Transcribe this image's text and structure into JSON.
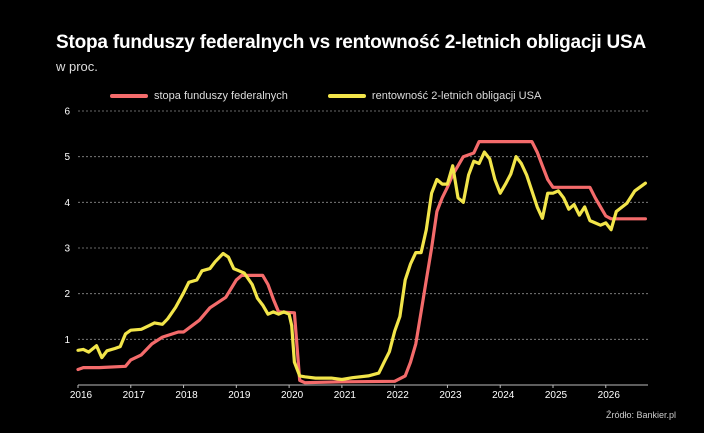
{
  "title": "Stopa funduszy federalnych vs rentowność 2-letnich obligacji USA",
  "subtitle": "w proc.",
  "source": "Źródło: Bankier.pl",
  "colors": {
    "background": "#000000",
    "fed": "#f46b6b",
    "yield": "#f2e54a",
    "grid": "#888888"
  },
  "chart_data": {
    "type": "line",
    "xlim": [
      2016,
      2026.8
    ],
    "ylim": [
      0,
      6
    ],
    "x_ticks": [
      "2016",
      "2017",
      "2018",
      "2019",
      "2020",
      "2021",
      "2022",
      "2023",
      "2024",
      "2025",
      "2026"
    ],
    "y_ticks": [
      "1",
      "2",
      "3",
      "4",
      "5",
      "6"
    ],
    "grid": "horizontal dashed",
    "legend_position": "top",
    "series": [
      {
        "name": "stopa funduszy federalnych",
        "color": "#f46b6b",
        "points": [
          [
            2016.0,
            0.34
          ],
          [
            2016.1,
            0.38
          ],
          [
            2016.4,
            0.38
          ],
          [
            2016.9,
            0.41
          ],
          [
            2017.0,
            0.55
          ],
          [
            2017.2,
            0.66
          ],
          [
            2017.4,
            0.9
          ],
          [
            2017.6,
            1.05
          ],
          [
            2017.9,
            1.16
          ],
          [
            2018.0,
            1.16
          ],
          [
            2018.3,
            1.42
          ],
          [
            2018.5,
            1.69
          ],
          [
            2018.8,
            1.92
          ],
          [
            2019.0,
            2.3
          ],
          [
            2019.1,
            2.4
          ],
          [
            2019.5,
            2.4
          ],
          [
            2019.6,
            2.2
          ],
          [
            2019.7,
            1.88
          ],
          [
            2019.8,
            1.6
          ],
          [
            2020.1,
            1.58
          ],
          [
            2020.2,
            0.1
          ],
          [
            2020.3,
            0.05
          ],
          [
            2021.0,
            0.07
          ],
          [
            2022.0,
            0.08
          ],
          [
            2022.2,
            0.2
          ],
          [
            2022.3,
            0.5
          ],
          [
            2022.4,
            0.9
          ],
          [
            2022.5,
            1.6
          ],
          [
            2022.6,
            2.3
          ],
          [
            2022.7,
            3.0
          ],
          [
            2022.8,
            3.8
          ],
          [
            2022.9,
            4.1
          ],
          [
            2023.0,
            4.33
          ],
          [
            2023.1,
            4.6
          ],
          [
            2023.3,
            5.0
          ],
          [
            2023.5,
            5.08
          ],
          [
            2023.6,
            5.33
          ],
          [
            2024.6,
            5.33
          ],
          [
            2024.7,
            5.1
          ],
          [
            2024.8,
            4.8
          ],
          [
            2024.9,
            4.5
          ],
          [
            2025.0,
            4.33
          ],
          [
            2025.7,
            4.33
          ],
          [
            2025.8,
            4.1
          ],
          [
            2025.9,
            3.9
          ],
          [
            2026.0,
            3.7
          ],
          [
            2026.1,
            3.64
          ],
          [
            2026.75,
            3.64
          ]
        ]
      },
      {
        "name": "rentowność 2-letnich obligacji USA",
        "color": "#f2e54a",
        "points": [
          [
            2016.0,
            0.76
          ],
          [
            2016.1,
            0.78
          ],
          [
            2016.2,
            0.72
          ],
          [
            2016.35,
            0.86
          ],
          [
            2016.45,
            0.6
          ],
          [
            2016.55,
            0.75
          ],
          [
            2016.7,
            0.8
          ],
          [
            2016.8,
            0.84
          ],
          [
            2016.9,
            1.12
          ],
          [
            2017.0,
            1.2
          ],
          [
            2017.2,
            1.22
          ],
          [
            2017.35,
            1.3
          ],
          [
            2017.45,
            1.36
          ],
          [
            2017.6,
            1.33
          ],
          [
            2017.7,
            1.45
          ],
          [
            2017.85,
            1.7
          ],
          [
            2018.0,
            2.02
          ],
          [
            2018.1,
            2.25
          ],
          [
            2018.25,
            2.3
          ],
          [
            2018.35,
            2.5
          ],
          [
            2018.5,
            2.55
          ],
          [
            2018.6,
            2.7
          ],
          [
            2018.75,
            2.88
          ],
          [
            2018.85,
            2.8
          ],
          [
            2018.95,
            2.55
          ],
          [
            2019.05,
            2.5
          ],
          [
            2019.15,
            2.45
          ],
          [
            2019.3,
            2.2
          ],
          [
            2019.4,
            1.9
          ],
          [
            2019.5,
            1.75
          ],
          [
            2019.6,
            1.55
          ],
          [
            2019.7,
            1.6
          ],
          [
            2019.8,
            1.55
          ],
          [
            2019.9,
            1.6
          ],
          [
            2020.0,
            1.55
          ],
          [
            2020.05,
            1.3
          ],
          [
            2020.1,
            0.5
          ],
          [
            2020.2,
            0.2
          ],
          [
            2020.3,
            0.18
          ],
          [
            2020.5,
            0.15
          ],
          [
            2020.8,
            0.15
          ],
          [
            2021.0,
            0.12
          ],
          [
            2021.2,
            0.16
          ],
          [
            2021.5,
            0.2
          ],
          [
            2021.7,
            0.26
          ],
          [
            2021.8,
            0.5
          ],
          [
            2021.9,
            0.73
          ],
          [
            2022.0,
            1.18
          ],
          [
            2022.1,
            1.5
          ],
          [
            2022.2,
            2.3
          ],
          [
            2022.3,
            2.65
          ],
          [
            2022.4,
            2.9
          ],
          [
            2022.5,
            2.9
          ],
          [
            2022.6,
            3.4
          ],
          [
            2022.7,
            4.2
          ],
          [
            2022.8,
            4.5
          ],
          [
            2022.9,
            4.4
          ],
          [
            2023.0,
            4.4
          ],
          [
            2023.1,
            4.8
          ],
          [
            2023.2,
            4.1
          ],
          [
            2023.3,
            4.0
          ],
          [
            2023.4,
            4.6
          ],
          [
            2023.5,
            4.9
          ],
          [
            2023.6,
            4.85
          ],
          [
            2023.7,
            5.1
          ],
          [
            2023.8,
            4.95
          ],
          [
            2023.9,
            4.5
          ],
          [
            2024.0,
            4.2
          ],
          [
            2024.1,
            4.4
          ],
          [
            2024.2,
            4.62
          ],
          [
            2024.3,
            5.0
          ],
          [
            2024.4,
            4.85
          ],
          [
            2024.5,
            4.6
          ],
          [
            2024.6,
            4.25
          ],
          [
            2024.7,
            3.9
          ],
          [
            2024.8,
            3.65
          ],
          [
            2024.9,
            4.2
          ],
          [
            2025.0,
            4.2
          ],
          [
            2025.1,
            4.25
          ],
          [
            2025.2,
            4.1
          ],
          [
            2025.3,
            3.85
          ],
          [
            2025.4,
            3.95
          ],
          [
            2025.5,
            3.72
          ],
          [
            2025.6,
            3.9
          ],
          [
            2025.7,
            3.6
          ],
          [
            2025.8,
            3.55
          ],
          [
            2025.9,
            3.5
          ],
          [
            2026.0,
            3.55
          ],
          [
            2026.1,
            3.4
          ],
          [
            2026.2,
            3.8
          ],
          [
            2026.4,
            3.98
          ],
          [
            2026.55,
            4.25
          ],
          [
            2026.75,
            4.42
          ]
        ]
      }
    ]
  }
}
